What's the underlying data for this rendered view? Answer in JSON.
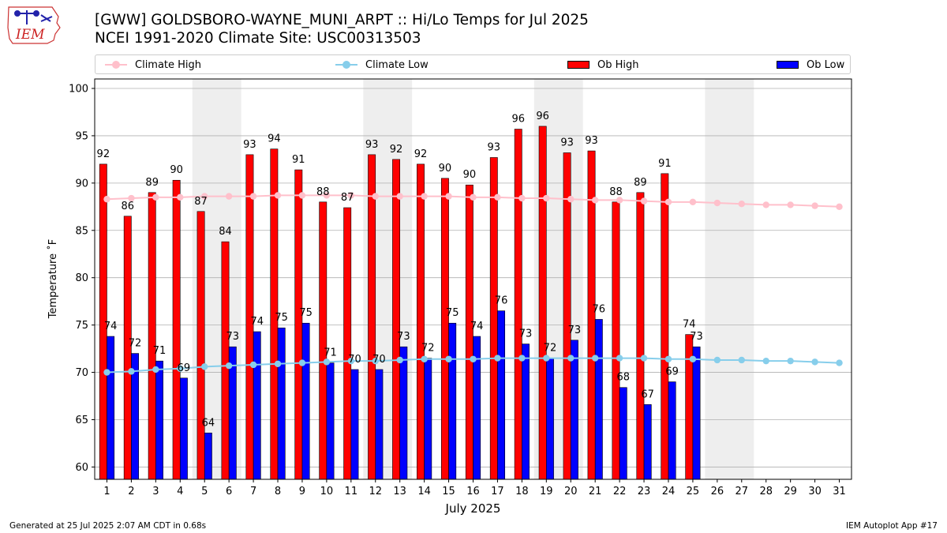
{
  "header": {
    "logo_text": "IEM",
    "title_line1": "[GWW] GOLDSBORO-WAYNE_MUNI_ARPT :: Hi/Lo Temps for Jul 2025",
    "title_line2": "NCEI 1991-2020 Climate Site: USC00313503"
  },
  "legend": {
    "climate_high": "Climate High",
    "climate_low": "Climate Low",
    "ob_high": "Ob High",
    "ob_low": "Ob Low"
  },
  "footer": {
    "generated": "Generated at 25 Jul 2025 2:07 AM CDT in 0.68s",
    "app": "IEM Autoplot App #17"
  },
  "colors": {
    "ob_high": "#ff0000",
    "ob_low": "#0000ff",
    "climate_high": "#ffc0cb",
    "climate_low": "#87ceeb",
    "weekend_shade": "#eeeeee",
    "grid": "#b0b0b0"
  },
  "chart_data": {
    "type": "bar",
    "xlabel": "July 2025",
    "ylabel": "Temperature ˚F",
    "ylim": [
      58.7,
      101
    ],
    "yticks": [
      60,
      65,
      70,
      75,
      80,
      85,
      90,
      95,
      100
    ],
    "days": [
      1,
      2,
      3,
      4,
      5,
      6,
      7,
      8,
      9,
      10,
      11,
      12,
      13,
      14,
      15,
      16,
      17,
      18,
      19,
      20,
      21,
      22,
      23,
      24,
      25,
      26,
      27,
      28,
      29,
      30,
      31
    ],
    "shaded_weekends": [
      [
        5,
        6
      ],
      [
        12,
        13
      ],
      [
        19,
        20
      ],
      [
        26,
        27
      ]
    ],
    "grid": "horizontal",
    "legend_position": "top",
    "ob_high": {
      "name": "Ob High",
      "values": [
        92,
        86.5,
        89,
        90.3,
        87,
        83.8,
        93,
        93.6,
        91.4,
        88,
        87.4,
        93,
        92.5,
        92,
        90.5,
        89.8,
        92.7,
        95.7,
        96,
        93.2,
        93.4,
        88,
        89,
        91,
        74
      ],
      "labels": [
        "92",
        "86",
        "89",
        "90",
        "87",
        "84",
        "93",
        "94",
        "91",
        "88",
        "87",
        "93",
        "92",
        "92",
        "90",
        "90",
        "93",
        "96",
        "96",
        "93",
        "93",
        "88",
        "89",
        "91",
        "74"
      ]
    },
    "ob_low": {
      "name": "Ob Low",
      "values": [
        73.8,
        72,
        71.2,
        69.4,
        63.6,
        72.7,
        74.3,
        74.7,
        75.2,
        71,
        70.3,
        70.3,
        72.7,
        71.5,
        75.2,
        73.8,
        76.5,
        73,
        71.5,
        73.4,
        75.6,
        68.4,
        66.6,
        69,
        72.7
      ],
      "labels": [
        "74",
        "72",
        "71",
        "69",
        "64",
        "73",
        "74",
        "75",
        "75",
        "71",
        "70",
        "70",
        "73",
        "72",
        "75",
        "74",
        "76",
        "73",
        "72",
        "73",
        "76",
        "68",
        "67",
        "69",
        "73"
      ]
    },
    "climate_high": {
      "name": "Climate High",
      "values": [
        88.3,
        88.4,
        88.5,
        88.5,
        88.6,
        88.6,
        88.6,
        88.7,
        88.7,
        88.7,
        88.7,
        88.6,
        88.6,
        88.6,
        88.6,
        88.5,
        88.5,
        88.4,
        88.4,
        88.3,
        88.2,
        88.2,
        88.1,
        88,
        88,
        87.9,
        87.8,
        87.7,
        87.7,
        87.6,
        87.5
      ]
    },
    "climate_low": {
      "name": "Climate Low",
      "values": [
        70,
        70.1,
        70.3,
        70.4,
        70.6,
        70.7,
        70.8,
        70.9,
        71,
        71.1,
        71.2,
        71.2,
        71.3,
        71.4,
        71.4,
        71.4,
        71.5,
        71.5,
        71.5,
        71.5,
        71.5,
        71.5,
        71.5,
        71.4,
        71.4,
        71.3,
        71.3,
        71.2,
        71.2,
        71.1,
        71
      ]
    }
  }
}
